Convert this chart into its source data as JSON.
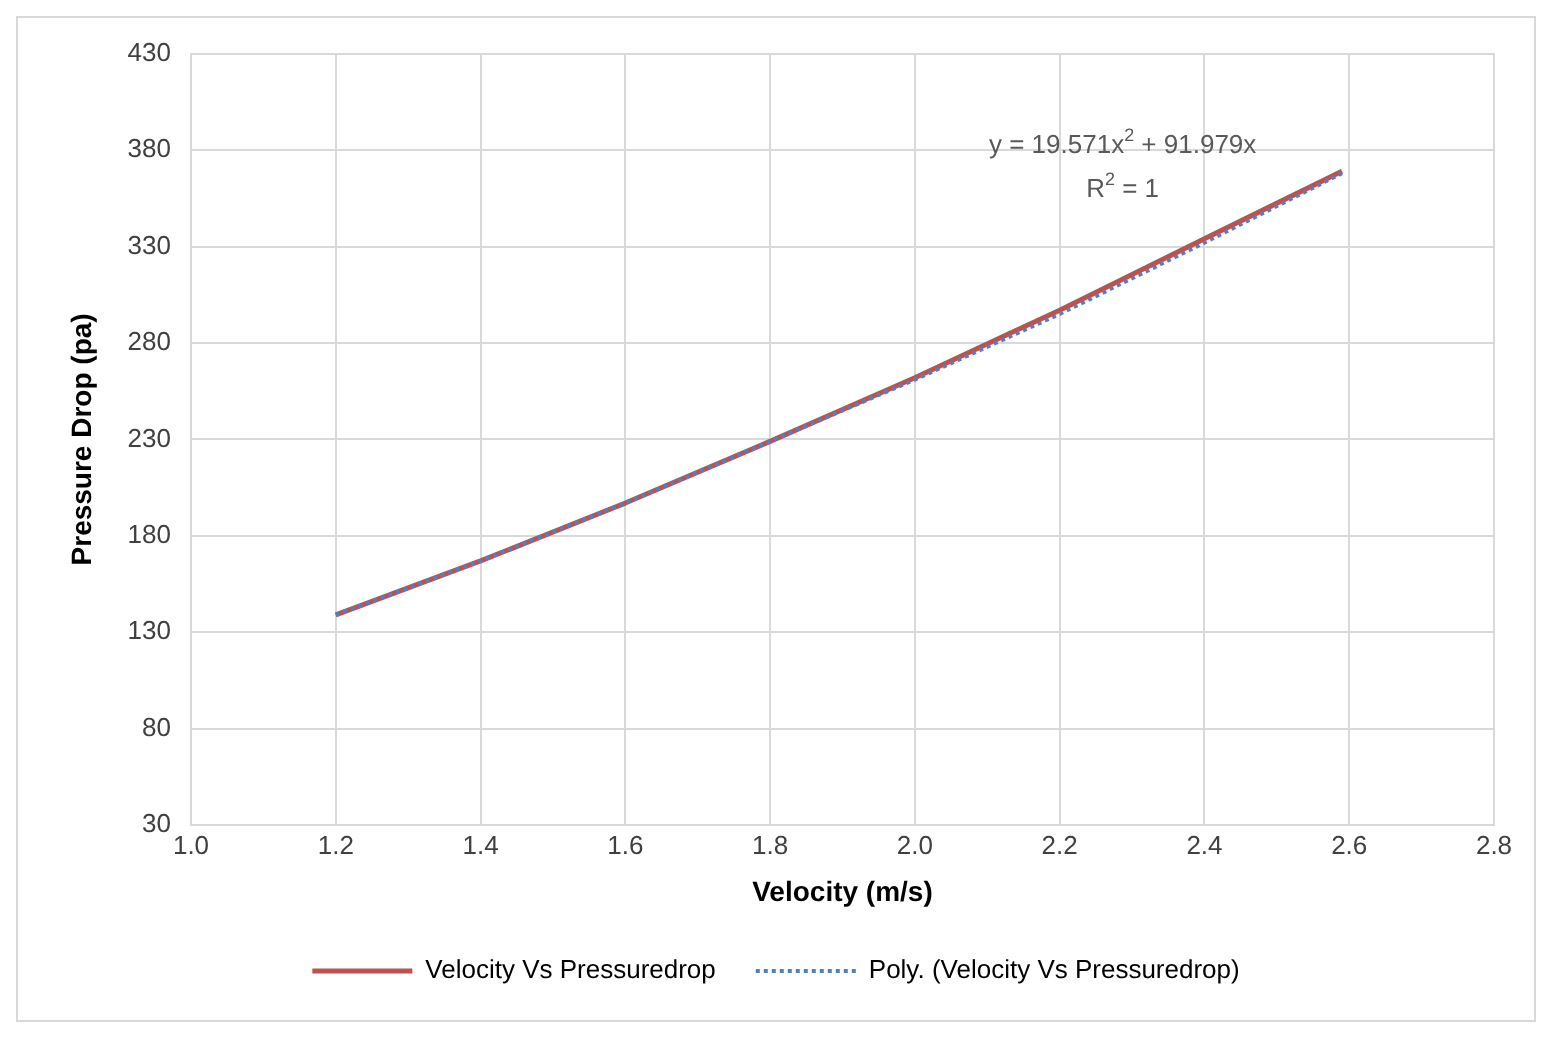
{
  "chart_data": {
    "type": "line",
    "xlabel": "Velocity (m/s)",
    "ylabel": "Pressure Drop (pa)",
    "x": [
      1.2,
      1.4,
      1.6,
      1.8,
      2.0,
      2.2,
      2.4,
      2.59
    ],
    "series": [
      {
        "name": "Velocity Vs Pressuredrop",
        "color": "#c0504d",
        "line_style": "solid",
        "values": [
          139,
          167,
          197,
          229,
          262,
          297,
          334,
          369
        ]
      },
      {
        "name": "Poly. (Velocity Vs Pressuredrop)",
        "color": "#4f81bd",
        "line_style": "dotted",
        "values": [
          139,
          167,
          197,
          229,
          261,
          295,
          332,
          368
        ]
      }
    ],
    "xlim": [
      1.0,
      2.8
    ],
    "xticks": [
      {
        "value": 1.0,
        "label": "1.0"
      },
      {
        "value": 1.2,
        "label": "1.2"
      },
      {
        "value": 1.4,
        "label": "1.4"
      },
      {
        "value": 1.6,
        "label": "1.6"
      },
      {
        "value": 1.8,
        "label": "1.8"
      },
      {
        "value": 2.0,
        "label": "2.0"
      },
      {
        "value": 2.2,
        "label": "2.2"
      },
      {
        "value": 2.4,
        "label": "2.4"
      },
      {
        "value": 2.6,
        "label": "2.6"
      },
      {
        "value": 2.8,
        "label": "2.8"
      }
    ],
    "ylim": [
      30,
      430
    ],
    "yticks": [
      30,
      80,
      130,
      180,
      230,
      280,
      330,
      380,
      430
    ],
    "annotations": [
      "y = 19.571x$^{2}$ + 91.979x",
      "R$^{2}$ = 1"
    ],
    "grid": true,
    "legend": "bottom",
    "marker": "none"
  }
}
